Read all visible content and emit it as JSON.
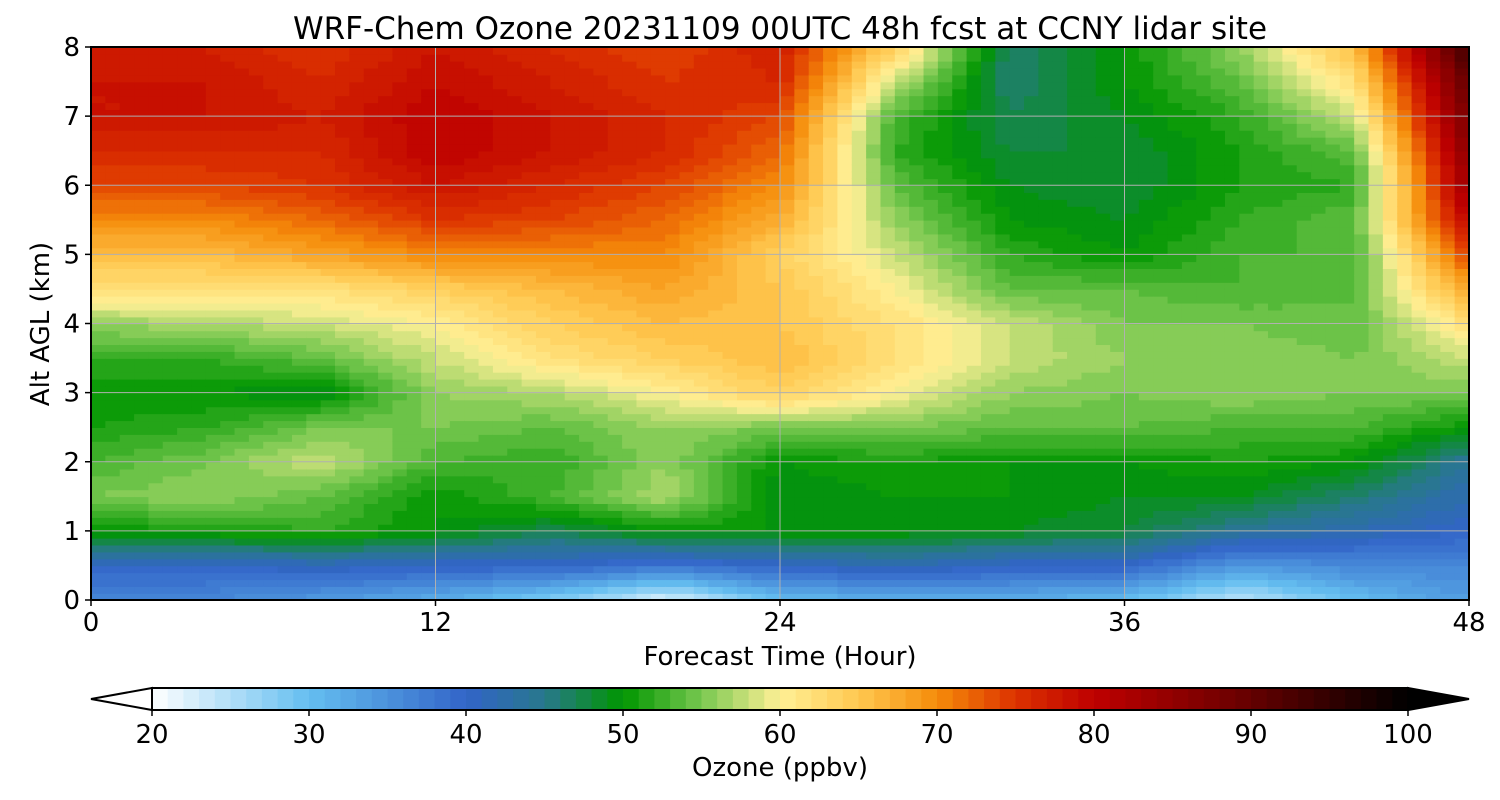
{
  "chart_data": {
    "type": "heatmap",
    "title": "WRF-Chem Ozone  20231109 00UTC 48h fcst at CCNY lidar site",
    "xlabel": "Forecast Time (Hour)",
    "ylabel": "Alt AGL (km)",
    "xlim": [
      0,
      48
    ],
    "ylim": [
      0,
      8
    ],
    "xticks": [
      "0",
      "12",
      "24",
      "36",
      "48"
    ],
    "yticks": [
      "0",
      "1",
      "2",
      "3",
      "4",
      "5",
      "6",
      "7",
      "8"
    ],
    "grid": true,
    "x_hours": [
      0,
      4,
      8,
      12,
      16,
      20,
      24,
      28,
      32,
      36,
      40,
      44,
      48
    ],
    "y_km": [
      0,
      0.5,
      1,
      1.5,
      2,
      2.5,
      3,
      3.5,
      4,
      4.5,
      5,
      5.5,
      6,
      6.5,
      7,
      7.5,
      8
    ],
    "z_ppbv": [
      [
        36,
        36,
        34,
        32,
        28,
        22,
        30,
        32,
        32,
        30,
        24,
        30,
        34
      ],
      [
        40,
        40,
        41,
        40,
        40,
        38,
        40,
        42,
        40,
        40,
        34,
        36,
        36
      ],
      [
        50,
        51,
        52,
        50,
        47,
        50,
        50,
        50,
        49,
        48,
        44,
        42,
        40
      ],
      [
        55,
        56,
        54,
        50,
        53,
        57,
        49,
        50,
        50,
        49,
        49,
        46,
        42
      ],
      [
        53,
        55,
        58,
        53,
        52,
        56,
        50,
        51,
        50,
        50,
        51,
        50,
        44
      ],
      [
        51,
        52,
        55,
        55,
        54,
        56,
        55,
        55,
        54,
        54,
        53,
        53,
        50
      ],
      [
        50,
        50,
        49,
        56,
        57,
        60,
        64,
        60,
        56,
        55,
        56,
        55,
        55
      ],
      [
        52,
        52,
        54,
        58,
        62,
        64,
        66,
        62,
        58,
        56,
        56,
        55,
        58
      ],
      [
        56,
        57,
        58,
        60,
        64,
        66,
        65,
        62,
        58,
        55,
        55,
        54,
        62
      ],
      [
        62,
        62,
        62,
        64,
        66,
        68,
        65,
        60,
        54,
        54,
        53,
        54,
        68
      ],
      [
        66,
        66,
        68,
        70,
        70,
        70,
        64,
        58,
        52,
        50,
        53,
        53,
        74
      ],
      [
        70,
        70,
        72,
        75,
        74,
        72,
        67,
        56,
        50,
        49,
        52,
        54,
        80
      ],
      [
        74,
        74,
        75,
        78,
        76,
        74,
        70,
        54,
        49,
        48,
        51,
        52,
        84
      ],
      [
        76,
        76,
        76,
        80,
        78,
        76,
        72,
        52,
        48,
        48,
        51,
        54,
        86
      ],
      [
        78,
        78,
        77,
        80,
        78,
        76,
        74,
        53,
        47,
        49,
        52,
        58,
        88
      ],
      [
        78,
        78,
        76,
        79,
        77,
        75,
        76,
        58,
        46,
        50,
        54,
        62,
        90
      ],
      [
        77,
        77,
        75,
        78,
        76,
        74,
        77,
        64,
        46,
        50,
        56,
        66,
        94
      ]
    ],
    "colorbar": {
      "label": "Ozone  (ppbv)",
      "min": 20,
      "max": 100,
      "step": 1,
      "ticks": [
        "20",
        "30",
        "40",
        "50",
        "60",
        "70",
        "80",
        "90",
        "100"
      ],
      "extend": "both"
    }
  }
}
